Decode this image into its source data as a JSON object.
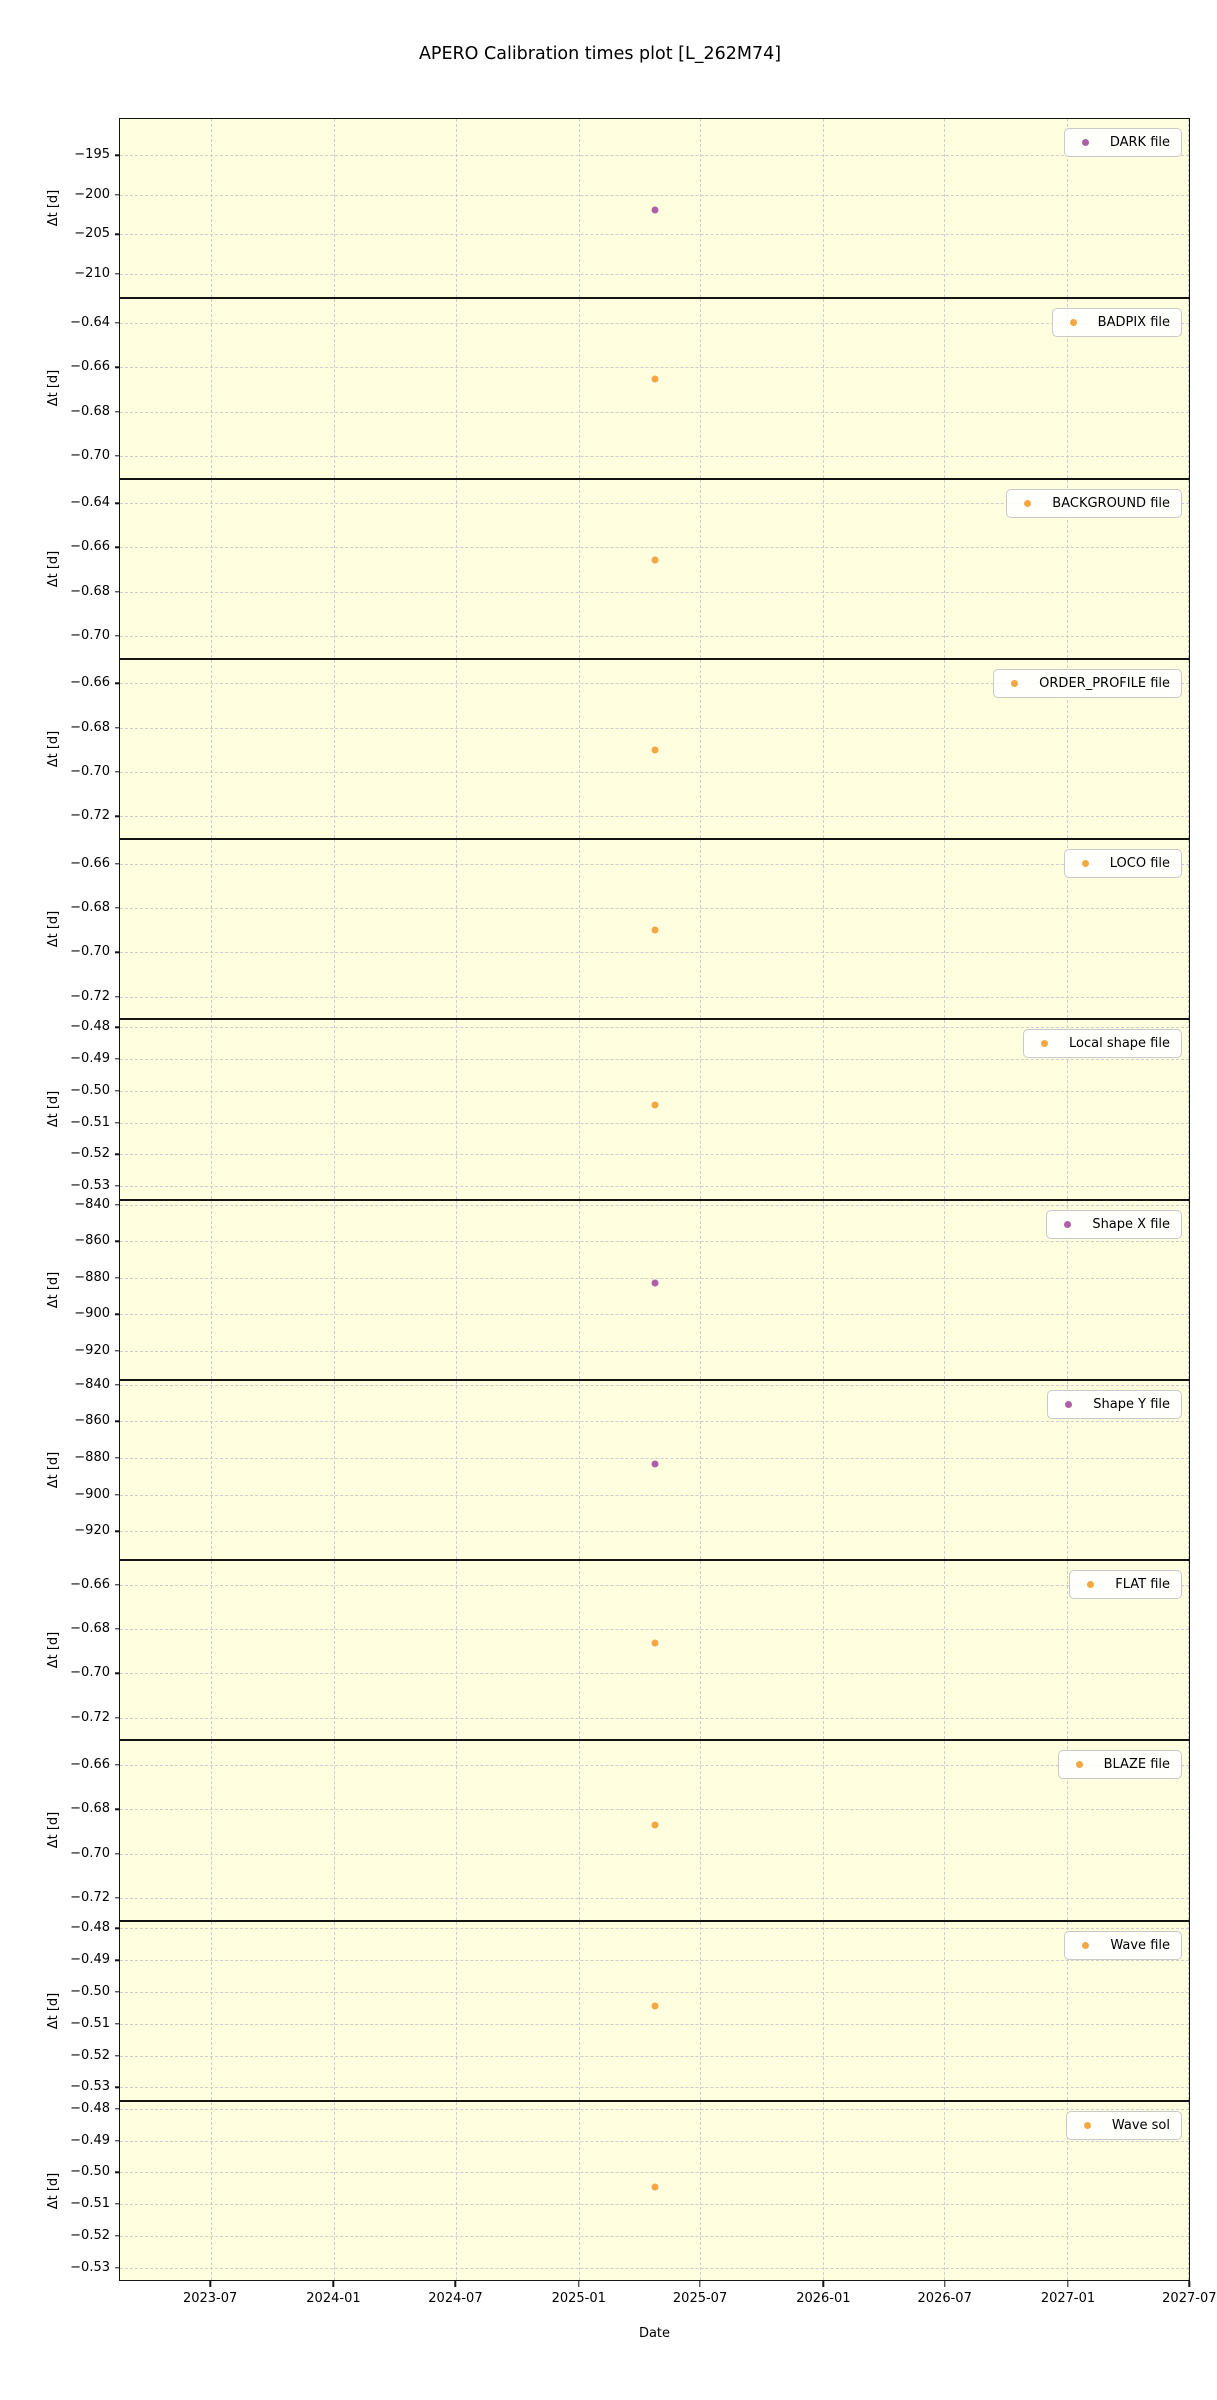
{
  "style": {
    "plot_bg": "#ffffe0",
    "grid_color": "#cdcdcd",
    "axis_color": "#141414",
    "legend_bg": "#ffffff",
    "legend_border": "#c9c9c9",
    "orange": "#f4a742",
    "purple": "#ae5fa8"
  },
  "chart_data": {
    "type": "scatter",
    "title": "APERO Calibration times plot [L_262M74]",
    "xlabel": "Date",
    "ylabel": "Δt [d]",
    "grid": "dashed, both axes",
    "legend_position": "upper right (inside each subplot)",
    "x_axis": {
      "lim": [
        "2023-02-15",
        "2027-07-02"
      ],
      "ticks": [
        {
          "date": "2023-07-01",
          "label": "2023-07"
        },
        {
          "date": "2024-01-01",
          "label": "2024-01"
        },
        {
          "date": "2024-07-01",
          "label": "2024-07"
        },
        {
          "date": "2025-01-01",
          "label": "2025-01"
        },
        {
          "date": "2025-07-01",
          "label": "2025-07"
        },
        {
          "date": "2026-01-01",
          "label": "2026-01"
        },
        {
          "date": "2026-07-01",
          "label": "2026-07"
        },
        {
          "date": "2027-01-01",
          "label": "2027-01"
        },
        {
          "date": "2027-07-01",
          "label": "2027-07"
        }
      ]
    },
    "subplots": [
      {
        "legend": "DARK file",
        "color_key": "purple",
        "ylim": [
          -190.4,
          -213.0
        ],
        "yticks": [
          {
            "v": -195,
            "label": "−195"
          },
          {
            "v": -200,
            "label": "−200"
          },
          {
            "v": -205,
            "label": "−205"
          },
          {
            "v": -210,
            "label": "−210"
          }
        ],
        "points": [
          {
            "x": "2025-04-24",
            "y": -202.0
          }
        ]
      },
      {
        "legend": "BADPIX file",
        "color_key": "orange",
        "ylim": [
          -0.6293,
          -0.7098
        ],
        "yticks": [
          {
            "v": -0.64,
            "label": "−0.64"
          },
          {
            "v": -0.66,
            "label": "−0.66"
          },
          {
            "v": -0.68,
            "label": "−0.68"
          },
          {
            "v": -0.7,
            "label": "−0.70"
          }
        ],
        "points": [
          {
            "x": "2025-04-24",
            "y": -0.6655
          }
        ]
      },
      {
        "legend": "BACKGROUND file",
        "color_key": "orange",
        "ylim": [
          -0.6293,
          -0.7098
        ],
        "yticks": [
          {
            "v": -0.64,
            "label": "−0.64"
          },
          {
            "v": -0.66,
            "label": "−0.66"
          },
          {
            "v": -0.68,
            "label": "−0.68"
          },
          {
            "v": -0.7,
            "label": "−0.70"
          }
        ],
        "points": [
          {
            "x": "2025-04-24",
            "y": -0.6655
          }
        ]
      },
      {
        "legend": "ORDER_PROFILE file",
        "color_key": "orange",
        "ylim": [
          -0.6493,
          -0.7298
        ],
        "yticks": [
          {
            "v": -0.66,
            "label": "−0.66"
          },
          {
            "v": -0.68,
            "label": "−0.68"
          },
          {
            "v": -0.7,
            "label": "−0.70"
          },
          {
            "v": -0.72,
            "label": "−0.72"
          }
        ],
        "points": [
          {
            "x": "2025-04-24",
            "y": -0.69
          }
        ]
      },
      {
        "legend": "LOCO file",
        "color_key": "orange",
        "ylim": [
          -0.6493,
          -0.7298
        ],
        "yticks": [
          {
            "v": -0.66,
            "label": "−0.66"
          },
          {
            "v": -0.68,
            "label": "−0.68"
          },
          {
            "v": -0.7,
            "label": "−0.70"
          },
          {
            "v": -0.72,
            "label": "−0.72"
          }
        ],
        "points": [
          {
            "x": "2025-04-24",
            "y": -0.69
          }
        ]
      },
      {
        "legend": "Local shape file",
        "color_key": "orange",
        "ylim": [
          -0.4778,
          -0.5339
        ],
        "yticks": [
          {
            "v": -0.48,
            "label": "−0.48"
          },
          {
            "v": -0.49,
            "label": "−0.49"
          },
          {
            "v": -0.5,
            "label": "−0.50"
          },
          {
            "v": -0.51,
            "label": "−0.51"
          },
          {
            "v": -0.52,
            "label": "−0.52"
          },
          {
            "v": -0.53,
            "label": "−0.53"
          }
        ],
        "points": [
          {
            "x": "2025-04-24",
            "y": -0.5045
          }
        ]
      },
      {
        "legend": "Shape X file",
        "color_key": "purple",
        "ylim": [
          -837.8,
          -935.2
        ],
        "yticks": [
          {
            "v": -840,
            "label": "−840"
          },
          {
            "v": -860,
            "label": "−860"
          },
          {
            "v": -880,
            "label": "−880"
          },
          {
            "v": -900,
            "label": "−900"
          },
          {
            "v": -920,
            "label": "−920"
          }
        ],
        "points": [
          {
            "x": "2025-04-24",
            "y": -883.0
          }
        ]
      },
      {
        "legend": "Shape Y file",
        "color_key": "purple",
        "ylim": [
          -837.8,
          -935.2
        ],
        "yticks": [
          {
            "v": -840,
            "label": "−840"
          },
          {
            "v": -860,
            "label": "−860"
          },
          {
            "v": -880,
            "label": "−880"
          },
          {
            "v": -900,
            "label": "−900"
          },
          {
            "v": -920,
            "label": "−920"
          }
        ],
        "points": [
          {
            "x": "2025-04-24",
            "y": -883.5
          }
        ]
      },
      {
        "legend": "FLAT file",
        "color_key": "orange",
        "ylim": [
          -0.6493,
          -0.7298
        ],
        "yticks": [
          {
            "v": -0.66,
            "label": "−0.66"
          },
          {
            "v": -0.68,
            "label": "−0.68"
          },
          {
            "v": -0.7,
            "label": "−0.70"
          },
          {
            "v": -0.72,
            "label": "−0.72"
          }
        ],
        "points": [
          {
            "x": "2025-04-24",
            "y": -0.6865
          }
        ]
      },
      {
        "legend": "BLAZE file",
        "color_key": "orange",
        "ylim": [
          -0.6493,
          -0.7298
        ],
        "yticks": [
          {
            "v": -0.66,
            "label": "−0.66"
          },
          {
            "v": -0.68,
            "label": "−0.68"
          },
          {
            "v": -0.7,
            "label": "−0.70"
          },
          {
            "v": -0.72,
            "label": "−0.72"
          }
        ],
        "points": [
          {
            "x": "2025-04-24",
            "y": -0.687
          }
        ]
      },
      {
        "legend": "Wave file",
        "color_key": "orange",
        "ylim": [
          -0.4778,
          -0.5339
        ],
        "yticks": [
          {
            "v": -0.48,
            "label": "−0.48"
          },
          {
            "v": -0.49,
            "label": "−0.49"
          },
          {
            "v": -0.5,
            "label": "−0.50"
          },
          {
            "v": -0.51,
            "label": "−0.51"
          },
          {
            "v": -0.52,
            "label": "−0.52"
          },
          {
            "v": -0.53,
            "label": "−0.53"
          }
        ],
        "points": [
          {
            "x": "2025-04-24",
            "y": -0.5045
          }
        ]
      },
      {
        "legend": "Wave sol",
        "color_key": "orange",
        "ylim": [
          -0.4778,
          -0.5339
        ],
        "yticks": [
          {
            "v": -0.48,
            "label": "−0.48"
          },
          {
            "v": -0.49,
            "label": "−0.49"
          },
          {
            "v": -0.5,
            "label": "−0.50"
          },
          {
            "v": -0.51,
            "label": "−0.51"
          },
          {
            "v": -0.52,
            "label": "−0.52"
          },
          {
            "v": -0.53,
            "label": "−0.53"
          }
        ],
        "points": [
          {
            "x": "2025-04-24",
            "y": -0.5045
          }
        ]
      }
    ]
  }
}
